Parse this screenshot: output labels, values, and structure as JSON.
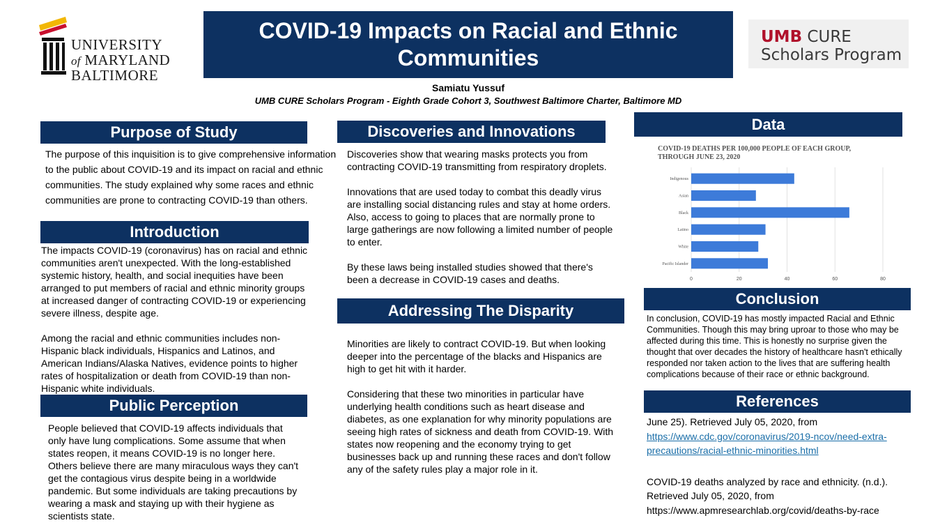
{
  "header": {
    "title": "COVID-19 Impacts on Racial and Ethnic Communities",
    "author": "Samiatu Yussuf",
    "affiliation": "UMB CURE  Scholars Program - Eighth Grade Cohort 3,  Southwest Baltimore Charter, Baltimore MD"
  },
  "logos": {
    "umb": {
      "line1": "UNIVERSITY",
      "line2_of": "of",
      "line2": "MARYLAND",
      "line3": "BALTIMORE"
    },
    "cure": {
      "line1_brand": "UMB",
      "line1_rest": " CURE",
      "line2": "Scholars Program"
    }
  },
  "purpose": {
    "heading": "Purpose of Study",
    "text": "The purpose of this inquisition is to give comprehensive information to the public about COVID-19 and its impact on racial and ethnic communities. The study explained why some races and ethnic communities are prone to contracting COVID-19 than others."
  },
  "introduction": {
    "heading": "Introduction",
    "paragraphs": [
      "The impacts COVID-19 (coronavirus) has on racial and ethnic communities aren't unexpected. With the long-established systemic history, health, and social inequities have been arranged to put members of racial and ethnic minority groups at increased danger of contracting COVID-19 or experiencing severe illness, despite age.",
      "Among the racial and ethnic communities includes non-Hispanic black individuals, Hispanics and Latinos, and American Indians/Alaska Natives, evidence points to higher rates of hospitalization or death from COVID-19 than non-Hispanic white individuals."
    ]
  },
  "perception": {
    "heading": "Public Perception",
    "text": "People believed that COVID-19 affects individuals that only have lung complications. Some assume that when states reopen, it means COVID-19 is no longer here. Others believe there are many miraculous ways they can't get the contagious virus despite being in a worldwide pandemic. But some individuals are taking precautions by wearing a mask and staying up with their hygiene as scientists state."
  },
  "discoveries": {
    "heading": "Discoveries and Innovations",
    "paragraphs": [
      "Discoveries show that wearing masks protects you from contracting COVID-19 transmitting from respiratory droplets.",
      "Innovations that are used today to combat this deadly virus are installing social distancing rules and stay at home orders. Also, access to going to places that are normally prone to large gatherings are now following a limited number of people to enter.",
      "By these laws being installed studies showed that there's been a  decrease in COVID-19 cases and deaths."
    ]
  },
  "disparity": {
    "heading": "Addressing The Disparity",
    "paragraphs": [
      "Minorities are likely to contract COVID-19. But when looking deeper into the percentage of the blacks and Hispanics are high to get hit with it harder.",
      "Considering that these two minorities in particular have underlying health conditions such as heart disease and diabetes, as one explanation for why minority populations are seeing high rates of sickness  and death from COVID-19. With states now reopening and the economy trying to get businesses back up and running these races and don't follow any of the safety rules play a major role in it."
    ]
  },
  "data_section": {
    "heading": "Data"
  },
  "conclusion": {
    "heading": "Conclusion",
    "text": "In conclusion, COVID-19 has mostly impacted Racial and Ethnic Communities. Though this may bring uproar to those who may  be affected during this time. This is honestly no surprise given the thought that over decades the history of healthcare hasn't ethically responded nor taken action to the lives that are suffering health complications because of their race or ethnic background."
  },
  "references": {
    "heading": "References",
    "ref1_text": "June 25). Retrieved July 05, 2020, from",
    "ref1_link": "https://www.cdc.gov/coronavirus/2019-ncov/need-extra-precautions/racial-ethnic-minorities.html",
    "ref2_text": "COVID-19 deaths analyzed by race and ethnicity. (n.d.). Retrieved July 05, 2020, from",
    "ref2_url": "https://www.apmresearchlab.org/covid/deaths-by-race"
  },
  "chart_data": {
    "type": "bar",
    "orientation": "horizontal",
    "title": "COVID-19 DEATHS PER 100,000 PEOPLE OF EACH GROUP, THROUGH JUNE 23, 2020",
    "categories": [
      "Indigenous",
      "Asian",
      "Black",
      "Latino",
      "White",
      "Pacific Islander"
    ],
    "values": [
      43,
      27,
      66,
      31,
      28,
      32
    ],
    "xlim": [
      0,
      80
    ],
    "xticks": [
      0,
      20,
      40,
      60,
      80
    ],
    "color": "#3d7bd9",
    "grid": true
  }
}
